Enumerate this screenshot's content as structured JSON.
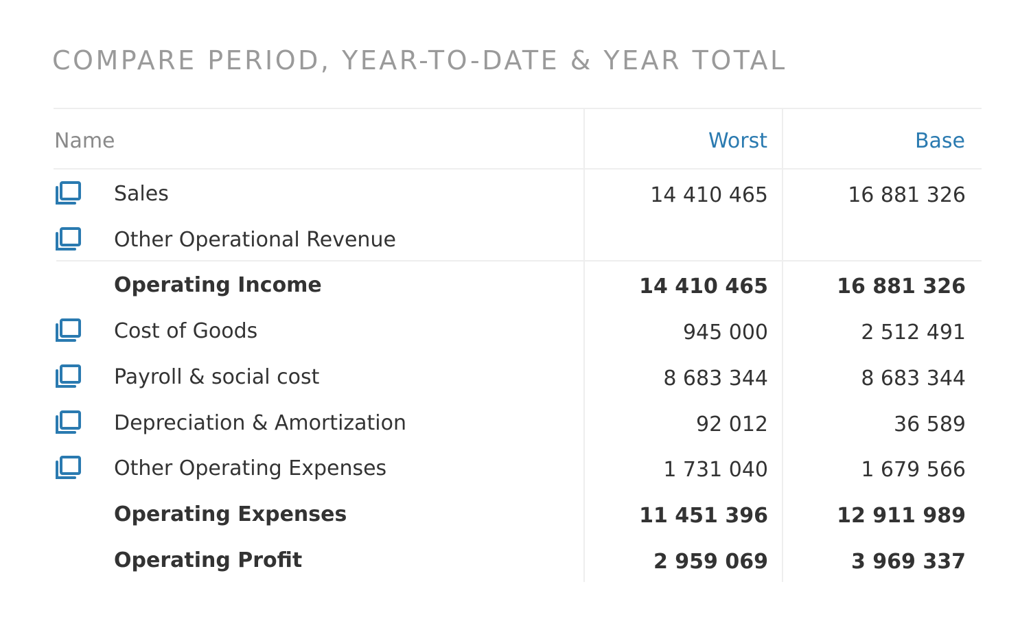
{
  "title": "COMPARE PERIOD, YEAR-TO-DATE & YEAR TOTAL",
  "table": {
    "columns": [
      "Name",
      "Worst",
      "Base"
    ],
    "rows": [
      {
        "name": "Sales",
        "values": [
          "14 410 465",
          "16 881 326"
        ],
        "icon": true,
        "total": false
      },
      {
        "name": "Other Operational Revenue",
        "values": [
          null,
          null
        ],
        "icon": true,
        "total": false
      },
      {
        "name": "Operating Income",
        "values": [
          "14 410 465",
          "16 881 326"
        ],
        "icon": false,
        "total": true
      },
      {
        "name": "Cost of Goods",
        "values": [
          "945 000",
          "2 512 491"
        ],
        "icon": true,
        "total": false
      },
      {
        "name": "Payroll & social cost",
        "values": [
          "8 683 344",
          "8 683 344"
        ],
        "icon": true,
        "total": false
      },
      {
        "name": "Depreciation & Amortization",
        "values": [
          "92 012",
          "36 589"
        ],
        "icon": true,
        "total": false
      },
      {
        "name": "Other Operating Expenses",
        "values": [
          "1 731 040",
          "1 679 566"
        ],
        "icon": true,
        "total": false
      },
      {
        "name": "Operating Expenses",
        "values": [
          "11 451 396",
          "12 911 989"
        ],
        "icon": false,
        "total": true
      },
      {
        "name": "Operating Profit",
        "values": [
          "2 959 069",
          "3 969 337"
        ],
        "icon": false,
        "total": true
      }
    ]
  }
}
